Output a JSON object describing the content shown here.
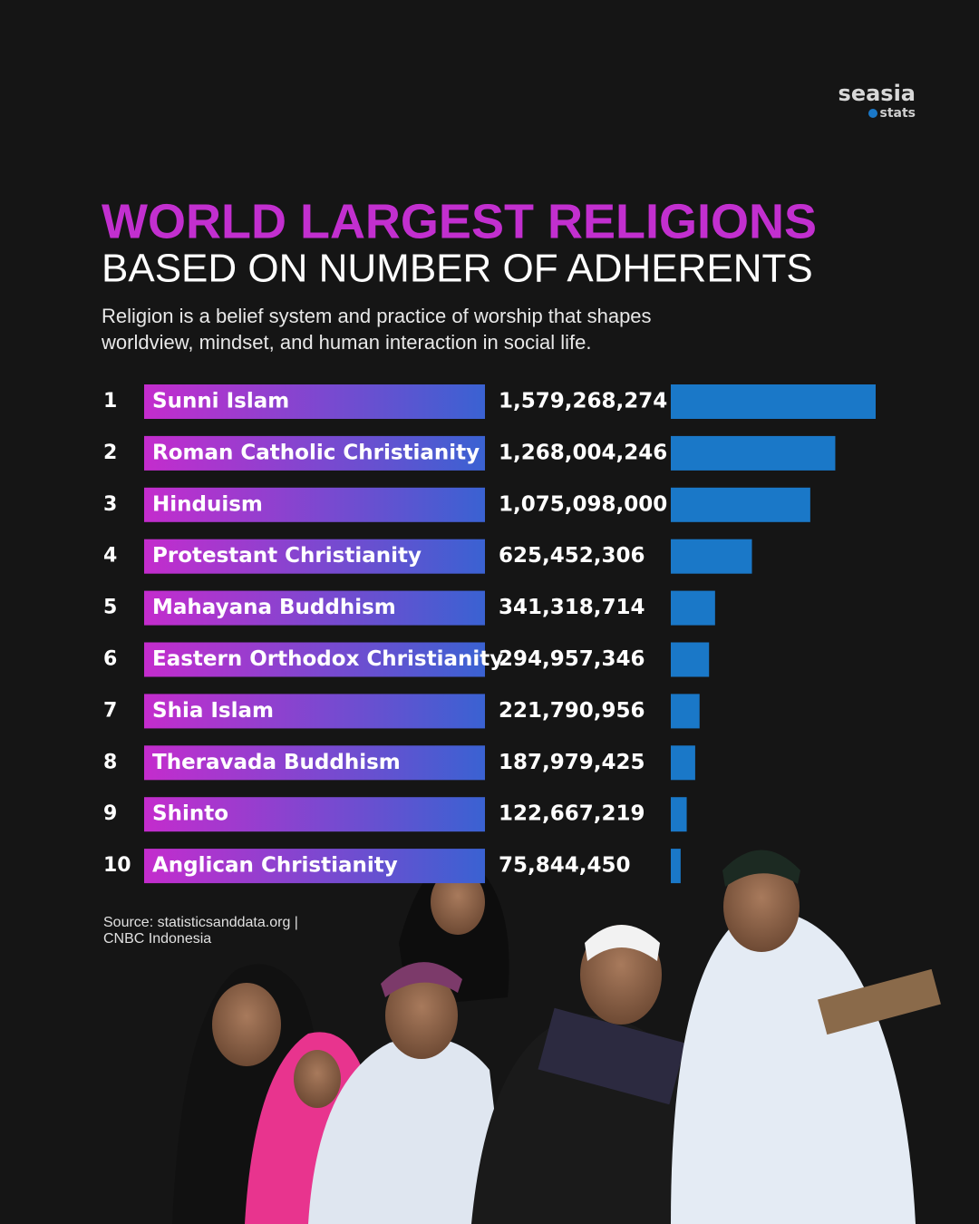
{
  "brand": {
    "name": "seasia",
    "tagline": "stats"
  },
  "chart_data": {
    "type": "bar",
    "orientation": "horizontal",
    "title": "WORLD LARGEST RELIGIONS",
    "subtitle": "BASED ON NUMBER OF ADHERENTS",
    "description": [
      "Religion is a belief system and practice of worship that shapes",
      "worldview, mindset, and human interaction in social life."
    ],
    "ranks": [
      1,
      2,
      3,
      4,
      5,
      6,
      7,
      8,
      9,
      10
    ],
    "categories": [
      "Sunni Islam",
      "Roman Catholic Christianity",
      "Hinduism",
      "Protestant Christianity",
      "Mahayana Buddhism",
      "Eastern Orthodox Christianity",
      "Shia Islam",
      "Theravada Buddhism",
      "Shinto",
      "Anglican Christianity"
    ],
    "values": [
      1579268274,
      1268004246,
      1075098000,
      625452306,
      341318714,
      294957346,
      221790956,
      187979425,
      122667219,
      75844450
    ],
    "value_labels": [
      "1,579,268,274",
      "1,268,004,246",
      "1,075,098,000",
      "625,452,306",
      "341,318,714",
      "294,957,346",
      "221,790,956",
      "187,979,425",
      "122,667,219",
      "75,844,450"
    ],
    "color": "#1a78c8",
    "source": [
      "Source: statisticsanddata.org |",
      "CNBC Indonesia"
    ]
  }
}
